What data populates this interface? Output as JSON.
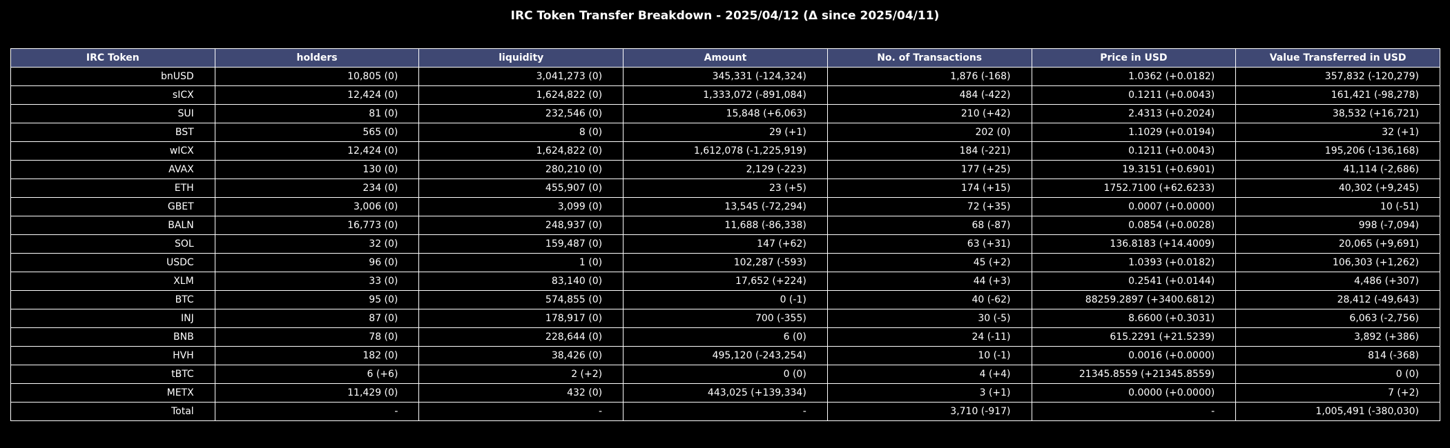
{
  "chart_data": {
    "type": "table",
    "title": "IRC Token Transfer Breakdown - 2025/04/12 (Δ since 2025/04/11)",
    "columns": [
      "IRC Token",
      "holders",
      "liquidity",
      "Amount",
      "No. of Transactions",
      "Price in USD",
      "Value Transferred in USD"
    ],
    "rows": [
      [
        "bnUSD",
        "10,805 (0)",
        "3,041,273 (0)",
        "345,331 (-124,324)",
        "1,876 (-168)",
        "1.0362 (+0.0182)",
        "357,832 (-120,279)"
      ],
      [
        "sICX",
        "12,424 (0)",
        "1,624,822 (0)",
        "1,333,072 (-891,084)",
        "484 (-422)",
        "0.1211 (+0.0043)",
        "161,421 (-98,278)"
      ],
      [
        "SUI",
        "81 (0)",
        "232,546 (0)",
        "15,848 (+6,063)",
        "210 (+42)",
        "2.4313 (+0.2024)",
        "38,532 (+16,721)"
      ],
      [
        "BST",
        "565 (0)",
        "8 (0)",
        "29 (+1)",
        "202 (0)",
        "1.1029 (+0.0194)",
        "32 (+1)"
      ],
      [
        "wICX",
        "12,424 (0)",
        "1,624,822 (0)",
        "1,612,078 (-1,225,919)",
        "184 (-221)",
        "0.1211 (+0.0043)",
        "195,206 (-136,168)"
      ],
      [
        "AVAX",
        "130 (0)",
        "280,210 (0)",
        "2,129 (-223)",
        "177 (+25)",
        "19.3151 (+0.6901)",
        "41,114 (-2,686)"
      ],
      [
        "ETH",
        "234 (0)",
        "455,907 (0)",
        "23 (+5)",
        "174 (+15)",
        "1752.7100 (+62.6233)",
        "40,302 (+9,245)"
      ],
      [
        "GBET",
        "3,006 (0)",
        "3,099 (0)",
        "13,545 (-72,294)",
        "72 (+35)",
        "0.0007 (+0.0000)",
        "10 (-51)"
      ],
      [
        "BALN",
        "16,773 (0)",
        "248,937 (0)",
        "11,688 (-86,338)",
        "68 (-87)",
        "0.0854 (+0.0028)",
        "998 (-7,094)"
      ],
      [
        "SOL",
        "32 (0)",
        "159,487 (0)",
        "147 (+62)",
        "63 (+31)",
        "136.8183 (+14.4009)",
        "20,065 (+9,691)"
      ],
      [
        "USDC",
        "96 (0)",
        "1 (0)",
        "102,287 (-593)",
        "45 (+2)",
        "1.0393 (+0.0182)",
        "106,303 (+1,262)"
      ],
      [
        "XLM",
        "33 (0)",
        "83,140 (0)",
        "17,652 (+224)",
        "44 (+3)",
        "0.2541 (+0.0144)",
        "4,486 (+307)"
      ],
      [
        "BTC",
        "95 (0)",
        "574,855 (0)",
        "0 (-1)",
        "40 (-62)",
        "88259.2897 (+3400.6812)",
        "28,412 (-49,643)"
      ],
      [
        "INJ",
        "87 (0)",
        "178,917 (0)",
        "700 (-355)",
        "30 (-5)",
        "8.6600 (+0.3031)",
        "6,063 (-2,756)"
      ],
      [
        "BNB",
        "78 (0)",
        "228,644 (0)",
        "6 (0)",
        "24 (-11)",
        "615.2291 (+21.5239)",
        "3,892 (+386)"
      ],
      [
        "HVH",
        "182 (0)",
        "38,426 (0)",
        "495,120 (-243,254)",
        "10 (-1)",
        "0.0016 (+0.0000)",
        "814 (-368)"
      ],
      [
        "tBTC",
        "6 (+6)",
        "2 (+2)",
        "0 (0)",
        "4 (+4)",
        "21345.8559 (+21345.8559)",
        "0 (0)"
      ],
      [
        "METX",
        "11,429 (0)",
        "432 (0)",
        "443,025 (+139,334)",
        "3 (+1)",
        "0.0000 (+0.0000)",
        "7 (+2)"
      ],
      [
        "Total",
        "-",
        "-",
        "-",
        "3,710 (-917)",
        "-",
        "1,005,491 (-380,030)"
      ]
    ],
    "colors": {
      "header_background": "#3f4873",
      "background": "#000000",
      "text": "#ffffff",
      "grid_lines": "#ffffff"
    }
  }
}
